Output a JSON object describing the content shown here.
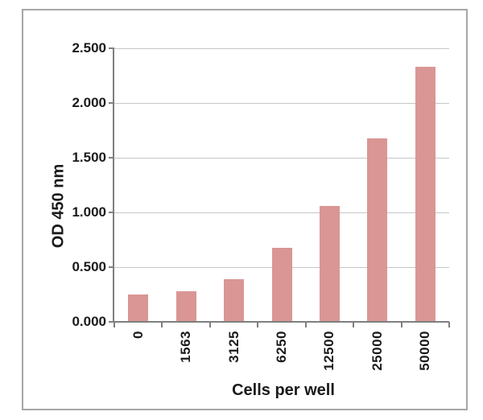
{
  "chart_data": {
    "type": "bar",
    "title": "",
    "xlabel": "Cells per well",
    "ylabel": "OD 450 nm",
    "categories": [
      "0",
      "1563",
      "3125",
      "6250",
      "12500",
      "25000",
      "50000"
    ],
    "values": [
      0.24,
      0.27,
      0.38,
      0.67,
      1.05,
      1.67,
      2.32
    ],
    "ylim": [
      0,
      2.5
    ],
    "ytick_step": 0.5,
    "ytick_labels": [
      "0.000",
      "0.500",
      "1.000",
      "1.500",
      "2.000",
      "2.500"
    ],
    "grid": true,
    "legend": "none",
    "colors": {
      "bar": "#d99694",
      "gridline": "#c6c6c6",
      "axis": "#7f7f7f",
      "text": "#1a1a1a",
      "border": "#a6a6a6",
      "background": "#ffffff"
    }
  }
}
